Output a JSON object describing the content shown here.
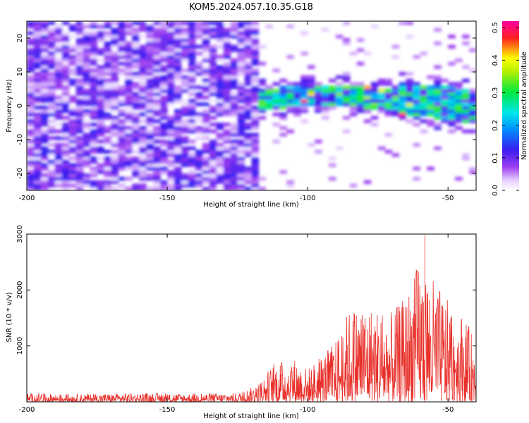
{
  "figure": {
    "title": "KOM5.2024.057.10.35.G18"
  },
  "chart_data": [
    {
      "type": "heatmap",
      "xlabel": "Height of straight line (km)",
      "ylabel": "Frequency (Hz)",
      "xlim": [
        -200,
        -40
      ],
      "ylim": [
        -25,
        25
      ],
      "xticks": [
        -200,
        -150,
        -100,
        -50
      ],
      "yticks": [
        -20,
        -10,
        0,
        10,
        20
      ],
      "colorbar": {
        "label": "Normalized spectral amplitude",
        "range": [
          0.0,
          0.52
        ],
        "ticks": [
          0.0,
          0.1,
          0.2,
          0.3,
          0.4,
          0.5
        ],
        "colormap": "rainbow (white-purple-blue-cyan-green-yellow-red-magenta)"
      },
      "description_values": {
        "noise_region_x": [
          -200,
          -118
        ],
        "noise_region_typical_amplitude": 0.06,
        "signal_band_x": [
          -118,
          -40
        ],
        "signal_band_center_hz": [
          2,
          3,
          3,
          3,
          2,
          2,
          1,
          1,
          0,
          -1
        ],
        "signal_band_center_x": [
          -115,
          -105,
          -95,
          -85,
          -75,
          -65,
          -55,
          -50,
          -45,
          -40
        ],
        "signal_peak_amplitude": 0.5
      },
      "grid": false
    },
    {
      "type": "line",
      "xlabel": "Height of straight line (km)",
      "ylabel": "SNR (10 * v/v)",
      "xlim": [
        -200,
        -40
      ],
      "ylim": [
        0,
        3000
      ],
      "xticks": [
        -200,
        -150,
        -100,
        -50
      ],
      "yticks": [
        1000,
        2000,
        3000
      ],
      "color": "#e8302a",
      "envelope": {
        "x": [
          -200,
          -180,
          -160,
          -140,
          -125,
          -118,
          -112,
          -105,
          -100,
          -95,
          -90,
          -85,
          -80,
          -75,
          -70,
          -65,
          -60,
          -55,
          -50,
          -45,
          -42,
          -40
        ],
        "max": [
          150,
          140,
          160,
          150,
          160,
          300,
          700,
          800,
          600,
          850,
          1100,
          1700,
          1800,
          1700,
          1600,
          1900,
          2600,
          2200,
          1800,
          1600,
          1300,
          1000
        ]
      },
      "grid": false
    }
  ]
}
